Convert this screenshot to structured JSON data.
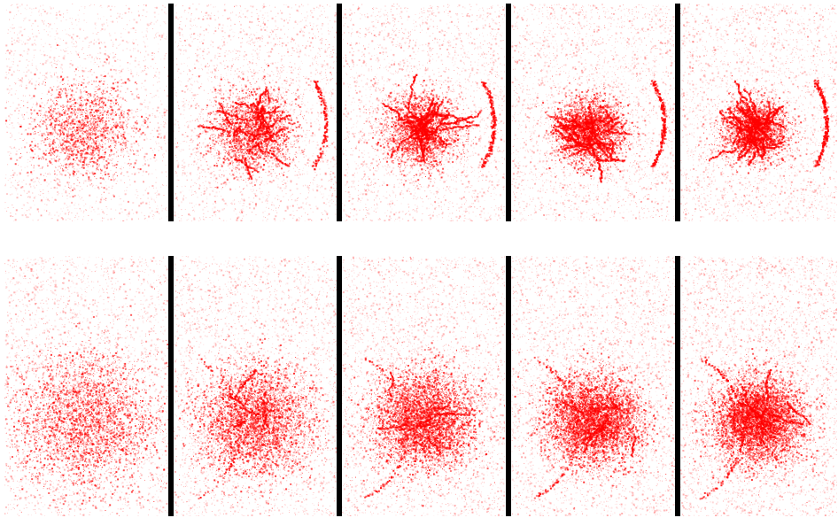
{
  "figure": {
    "background": "#ffffff",
    "divider_color": "#000000",
    "speckle_color": "#ff0000",
    "rows": [
      {
        "id": "top",
        "panels": [
          {
            "id": "top-1",
            "spread": 1.0,
            "density": 0.45,
            "filaments": 0.0
          },
          {
            "id": "top-2",
            "spread": 0.8,
            "density": 0.6,
            "filaments": 0.55
          },
          {
            "id": "top-3",
            "spread": 0.7,
            "density": 0.65,
            "filaments": 0.75
          },
          {
            "id": "top-4",
            "spread": 0.65,
            "density": 0.7,
            "filaments": 0.85
          },
          {
            "id": "top-5",
            "spread": 0.6,
            "density": 0.7,
            "filaments": 0.95
          }
        ]
      },
      {
        "id": "bottom",
        "panels": [
          {
            "id": "bottom-1",
            "spread": 1.0,
            "density": 0.55,
            "filaments": 0.0
          },
          {
            "id": "bottom-2",
            "spread": 0.8,
            "density": 0.65,
            "filaments": 0.2
          },
          {
            "id": "bottom-3",
            "spread": 0.7,
            "density": 0.75,
            "filaments": 0.35
          },
          {
            "id": "bottom-4",
            "spread": 0.65,
            "density": 0.8,
            "filaments": 0.45
          },
          {
            "id": "bottom-5",
            "spread": 0.6,
            "density": 0.85,
            "filaments": 0.55
          }
        ]
      }
    ]
  }
}
